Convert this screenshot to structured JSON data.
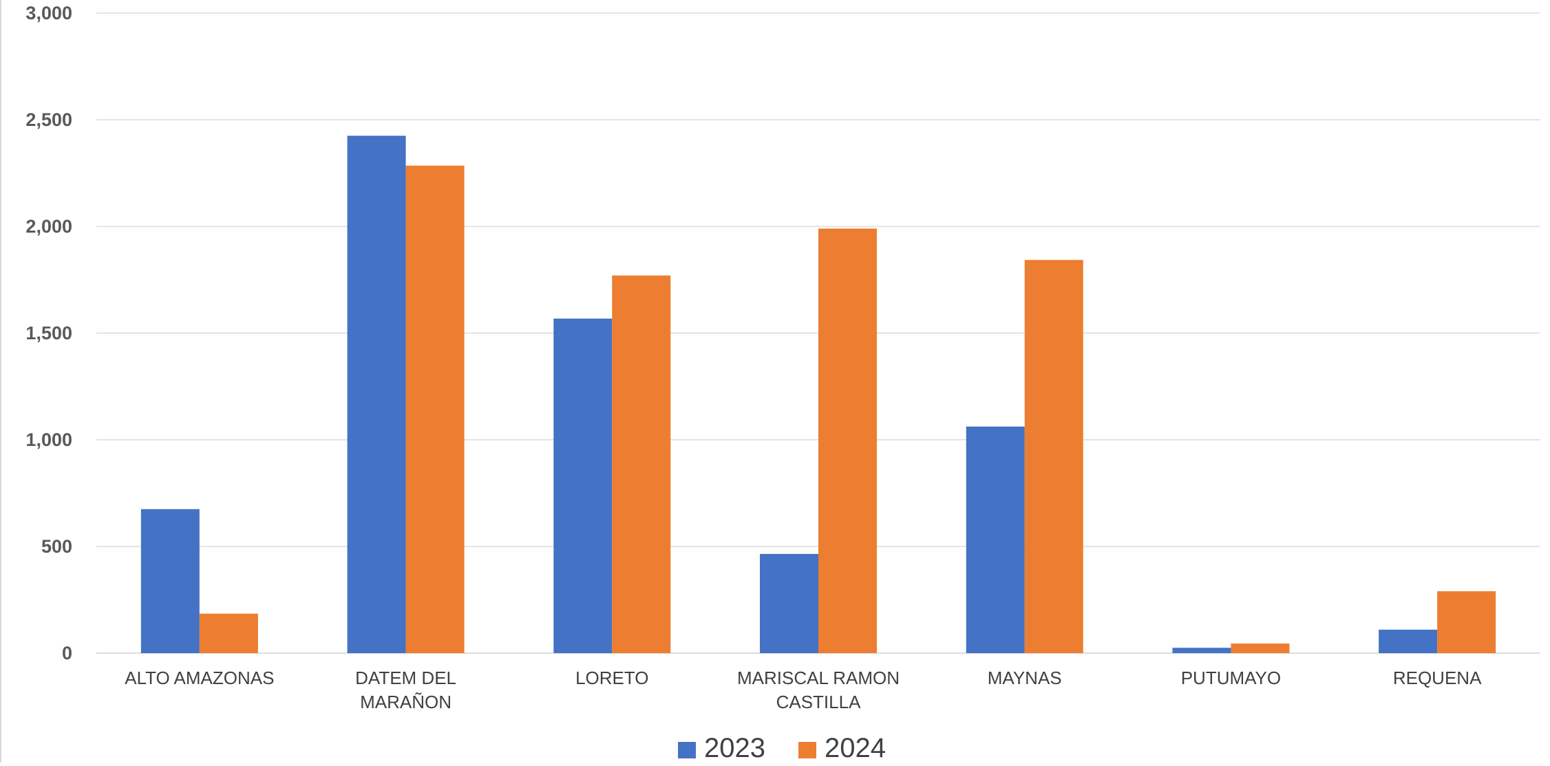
{
  "chart_data": {
    "type": "bar",
    "title": "",
    "xlabel": "",
    "ylabel": "",
    "categories": [
      [
        "ALTO AMAZONAS"
      ],
      [
        "DATEM DEL",
        "MARAÑON"
      ],
      [
        "LORETO"
      ],
      [
        "MARISCAL RAMON",
        "CASTILLA"
      ],
      [
        "MAYNAS"
      ],
      [
        "PUTUMAYO"
      ],
      [
        "REQUENA"
      ]
    ],
    "series": [
      {
        "name": "2023",
        "color": "#4472C4",
        "values": [
          675,
          2425,
          1568,
          465,
          1062,
          25,
          110
        ]
      },
      {
        "name": "2024",
        "color": "#ED7D31",
        "values": [
          185,
          2285,
          1770,
          1990,
          1843,
          45,
          290
        ]
      }
    ],
    "ylim": [
      0,
      3000
    ],
    "yticks": [
      0,
      500,
      1000,
      1500,
      2000,
      2500,
      3000
    ],
    "ytick_labels": [
      "0",
      "500",
      "1,000",
      "1,500",
      "2,000",
      "2,500",
      "3,000"
    ],
    "grid": true,
    "legend_position": "bottom"
  }
}
